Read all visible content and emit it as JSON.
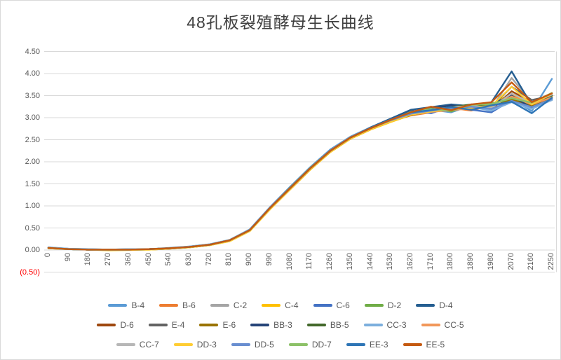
{
  "title": "48孔板裂殖酵母生长曲线",
  "colors": {
    "title_text": "#3f3f3f",
    "axis_label": "#595959",
    "negative_label": "#ff0000",
    "gridline": "#d9d9d9",
    "chart_border": "#d9d9d9"
  },
  "chart_data": {
    "type": "line",
    "title": "48孔板裂殖酵母生长曲线",
    "xlabel": "",
    "ylabel": "",
    "x": [
      0,
      90,
      180,
      270,
      360,
      450,
      540,
      630,
      720,
      810,
      900,
      990,
      1080,
      1170,
      1260,
      1350,
      1440,
      1530,
      1620,
      1710,
      1800,
      1890,
      1980,
      2070,
      2160,
      2250
    ],
    "x_tick_labels": [
      "0",
      "90",
      "180",
      "270",
      "360",
      "450",
      "540",
      "630",
      "720",
      "810",
      "900",
      "990",
      "1080",
      "1170",
      "1260",
      "1350",
      "1440",
      "1530",
      "1620",
      "1710",
      "1800",
      "1890",
      "1980",
      "2070",
      "2160",
      "2250"
    ],
    "ylim": [
      -0.5,
      4.5
    ],
    "y_tick_values": [
      4.5,
      4.0,
      3.5,
      3.0,
      2.5,
      2.0,
      1.5,
      1.0,
      0.5,
      0.0,
      -0.5
    ],
    "y_tick_labels": [
      "4.50",
      "4.00",
      "3.50",
      "3.00",
      "2.50",
      "2.00",
      "1.50",
      "1.00",
      "0.50",
      "0.00",
      "(0.50)"
    ],
    "grid": "horizontal",
    "legend_position": "bottom",
    "legend_rows": [
      [
        "B-4",
        "B-6",
        "C-2",
        "C-4",
        "C-6",
        "D-2",
        "D-4"
      ],
      [
        "D-6",
        "E-4",
        "E-6",
        "BB-3",
        "BB-5",
        "CC-3",
        "CC-5"
      ],
      [
        "CC-7",
        "DD-3",
        "DD-5",
        "DD-7",
        "EE-3",
        "EE-5"
      ]
    ],
    "series": [
      {
        "name": "B-4",
        "color": "#5B9BD5",
        "values": [
          0.06,
          0.03,
          0.02,
          0.01,
          0.02,
          0.02,
          0.05,
          0.08,
          0.13,
          0.23,
          0.47,
          0.97,
          1.43,
          1.88,
          2.28,
          2.57,
          2.78,
          2.96,
          3.08,
          3.18,
          3.12,
          3.28,
          3.18,
          3.42,
          3.15,
          3.88
        ]
      },
      {
        "name": "B-6",
        "color": "#ED7D31",
        "values": [
          0.05,
          0.02,
          0.01,
          0.01,
          0.01,
          0.02,
          0.04,
          0.07,
          0.12,
          0.22,
          0.45,
          0.94,
          1.4,
          1.84,
          2.24,
          2.54,
          2.76,
          2.92,
          3.05,
          3.12,
          3.22,
          3.16,
          3.28,
          3.52,
          3.28,
          3.5
        ]
      },
      {
        "name": "C-2",
        "color": "#A5A5A5",
        "values": [
          0.05,
          0.02,
          0.01,
          0.01,
          0.01,
          0.02,
          0.04,
          0.07,
          0.12,
          0.21,
          0.44,
          0.93,
          1.38,
          1.83,
          2.23,
          2.53,
          2.74,
          2.95,
          3.12,
          3.2,
          3.14,
          3.3,
          3.2,
          3.9,
          3.35,
          3.55
        ]
      },
      {
        "name": "C-4",
        "color": "#FFC000",
        "values": [
          0.04,
          0.02,
          0.01,
          0.0,
          0.01,
          0.01,
          0.03,
          0.06,
          0.11,
          0.2,
          0.43,
          0.92,
          1.37,
          1.82,
          2.22,
          2.52,
          2.73,
          2.9,
          3.06,
          3.14,
          3.18,
          3.22,
          3.3,
          3.55,
          3.3,
          3.48
        ]
      },
      {
        "name": "C-6",
        "color": "#4472C4",
        "values": [
          0.05,
          0.02,
          0.01,
          0.01,
          0.01,
          0.02,
          0.04,
          0.07,
          0.12,
          0.22,
          0.46,
          0.96,
          1.42,
          1.86,
          2.26,
          2.56,
          2.77,
          2.97,
          3.15,
          3.1,
          3.25,
          3.18,
          3.12,
          3.4,
          3.25,
          3.45
        ]
      },
      {
        "name": "D-2",
        "color": "#70AD47",
        "values": [
          0.05,
          0.02,
          0.01,
          0.01,
          0.01,
          0.02,
          0.04,
          0.07,
          0.12,
          0.22,
          0.45,
          0.95,
          1.41,
          1.85,
          2.25,
          2.55,
          2.76,
          2.94,
          3.1,
          3.22,
          3.14,
          3.28,
          3.32,
          3.45,
          3.3,
          3.52
        ]
      },
      {
        "name": "D-4",
        "color": "#255E91",
        "values": [
          0.05,
          0.02,
          0.01,
          0.01,
          0.01,
          0.02,
          0.04,
          0.07,
          0.12,
          0.22,
          0.45,
          0.95,
          1.4,
          1.85,
          2.25,
          2.55,
          2.78,
          2.98,
          3.18,
          3.24,
          3.3,
          3.26,
          3.35,
          4.05,
          3.28,
          3.42
        ]
      },
      {
        "name": "D-6",
        "color": "#9E480E",
        "values": [
          0.05,
          0.02,
          0.01,
          0.01,
          0.01,
          0.02,
          0.04,
          0.07,
          0.12,
          0.22,
          0.45,
          0.94,
          1.39,
          1.84,
          2.24,
          2.54,
          2.75,
          2.93,
          3.08,
          3.18,
          3.2,
          3.25,
          3.18,
          3.6,
          3.35,
          3.45
        ]
      },
      {
        "name": "E-4",
        "color": "#636363",
        "values": [
          0.05,
          0.02,
          0.01,
          0.01,
          0.01,
          0.02,
          0.04,
          0.07,
          0.12,
          0.21,
          0.44,
          0.94,
          1.39,
          1.84,
          2.24,
          2.54,
          2.75,
          2.94,
          3.1,
          3.16,
          3.22,
          3.26,
          3.24,
          3.7,
          3.4,
          3.5
        ]
      },
      {
        "name": "E-6",
        "color": "#997300",
        "values": [
          0.04,
          0.02,
          0.01,
          0.0,
          0.01,
          0.01,
          0.03,
          0.06,
          0.11,
          0.21,
          0.44,
          0.93,
          1.38,
          1.83,
          2.23,
          2.53,
          2.74,
          2.92,
          3.06,
          3.14,
          3.18,
          3.22,
          3.26,
          3.42,
          3.26,
          3.44
        ]
      },
      {
        "name": "BB-3",
        "color": "#264478",
        "values": [
          0.05,
          0.02,
          0.01,
          0.01,
          0.01,
          0.02,
          0.04,
          0.07,
          0.12,
          0.22,
          0.45,
          0.95,
          1.41,
          1.86,
          2.26,
          2.56,
          2.77,
          2.96,
          3.14,
          3.2,
          3.28,
          3.2,
          3.3,
          3.5,
          3.22,
          3.4
        ]
      },
      {
        "name": "BB-5",
        "color": "#43682B",
        "values": [
          0.05,
          0.02,
          0.01,
          0.01,
          0.01,
          0.02,
          0.04,
          0.07,
          0.12,
          0.22,
          0.45,
          0.95,
          1.4,
          1.85,
          2.25,
          2.55,
          2.76,
          2.95,
          3.12,
          3.18,
          3.24,
          3.3,
          3.26,
          3.46,
          3.32,
          3.5
        ]
      },
      {
        "name": "CC-3",
        "color": "#7CAFDD",
        "values": [
          0.06,
          0.03,
          0.02,
          0.01,
          0.02,
          0.02,
          0.04,
          0.08,
          0.13,
          0.23,
          0.46,
          0.96,
          1.41,
          1.86,
          2.26,
          2.56,
          2.77,
          2.95,
          3.1,
          3.15,
          3.18,
          3.24,
          3.16,
          3.35,
          3.2,
          3.4
        ]
      },
      {
        "name": "CC-5",
        "color": "#F1975A",
        "values": [
          0.05,
          0.02,
          0.01,
          0.01,
          0.01,
          0.02,
          0.04,
          0.07,
          0.12,
          0.22,
          0.45,
          0.94,
          1.4,
          1.84,
          2.24,
          2.54,
          2.75,
          2.93,
          3.07,
          3.13,
          3.17,
          3.21,
          3.26,
          3.48,
          3.3,
          3.46
        ]
      },
      {
        "name": "CC-7",
        "color": "#B7B7B7",
        "values": [
          0.05,
          0.02,
          0.01,
          0.01,
          0.01,
          0.02,
          0.04,
          0.07,
          0.12,
          0.21,
          0.44,
          0.93,
          1.39,
          1.84,
          2.24,
          2.54,
          2.75,
          2.94,
          3.11,
          3.19,
          3.23,
          3.27,
          3.22,
          3.55,
          3.33,
          3.52
        ]
      },
      {
        "name": "DD-3",
        "color": "#FFCD33",
        "values": [
          0.04,
          0.02,
          0.01,
          -0.01,
          0.0,
          0.01,
          0.03,
          0.06,
          0.11,
          0.2,
          0.43,
          0.92,
          1.38,
          1.83,
          2.23,
          2.53,
          2.74,
          2.91,
          3.07,
          3.14,
          3.19,
          3.23,
          3.27,
          3.7,
          3.3,
          3.55
        ]
      },
      {
        "name": "DD-5",
        "color": "#698ED0",
        "values": [
          0.05,
          0.02,
          0.01,
          0.01,
          0.01,
          0.02,
          0.04,
          0.07,
          0.12,
          0.22,
          0.45,
          0.95,
          1.4,
          1.85,
          2.25,
          2.55,
          2.76,
          2.94,
          3.09,
          3.16,
          3.21,
          3.25,
          3.2,
          3.38,
          3.24,
          3.42
        ]
      },
      {
        "name": "DD-7",
        "color": "#8CC168",
        "values": [
          0.05,
          0.02,
          0.01,
          0.01,
          0.01,
          0.02,
          0.04,
          0.07,
          0.12,
          0.22,
          0.45,
          0.95,
          1.41,
          1.86,
          2.25,
          2.55,
          2.76,
          2.95,
          3.13,
          3.2,
          3.16,
          3.29,
          3.31,
          3.44,
          3.34,
          3.56
        ]
      },
      {
        "name": "EE-3",
        "color": "#2E75B6",
        "values": [
          0.05,
          0.02,
          0.01,
          0.01,
          0.01,
          0.02,
          0.04,
          0.07,
          0.12,
          0.22,
          0.45,
          0.95,
          1.4,
          1.85,
          2.25,
          2.55,
          2.77,
          2.96,
          3.12,
          3.17,
          3.24,
          3.18,
          3.28,
          3.36,
          3.1,
          3.45
        ]
      },
      {
        "name": "EE-5",
        "color": "#C55A11",
        "values": [
          0.05,
          0.02,
          0.01,
          0.01,
          0.01,
          0.02,
          0.04,
          0.07,
          0.12,
          0.22,
          0.45,
          0.95,
          1.4,
          1.85,
          2.25,
          2.55,
          2.76,
          2.95,
          3.12,
          3.25,
          3.17,
          3.3,
          3.35,
          3.8,
          3.35,
          3.55
        ]
      }
    ]
  }
}
